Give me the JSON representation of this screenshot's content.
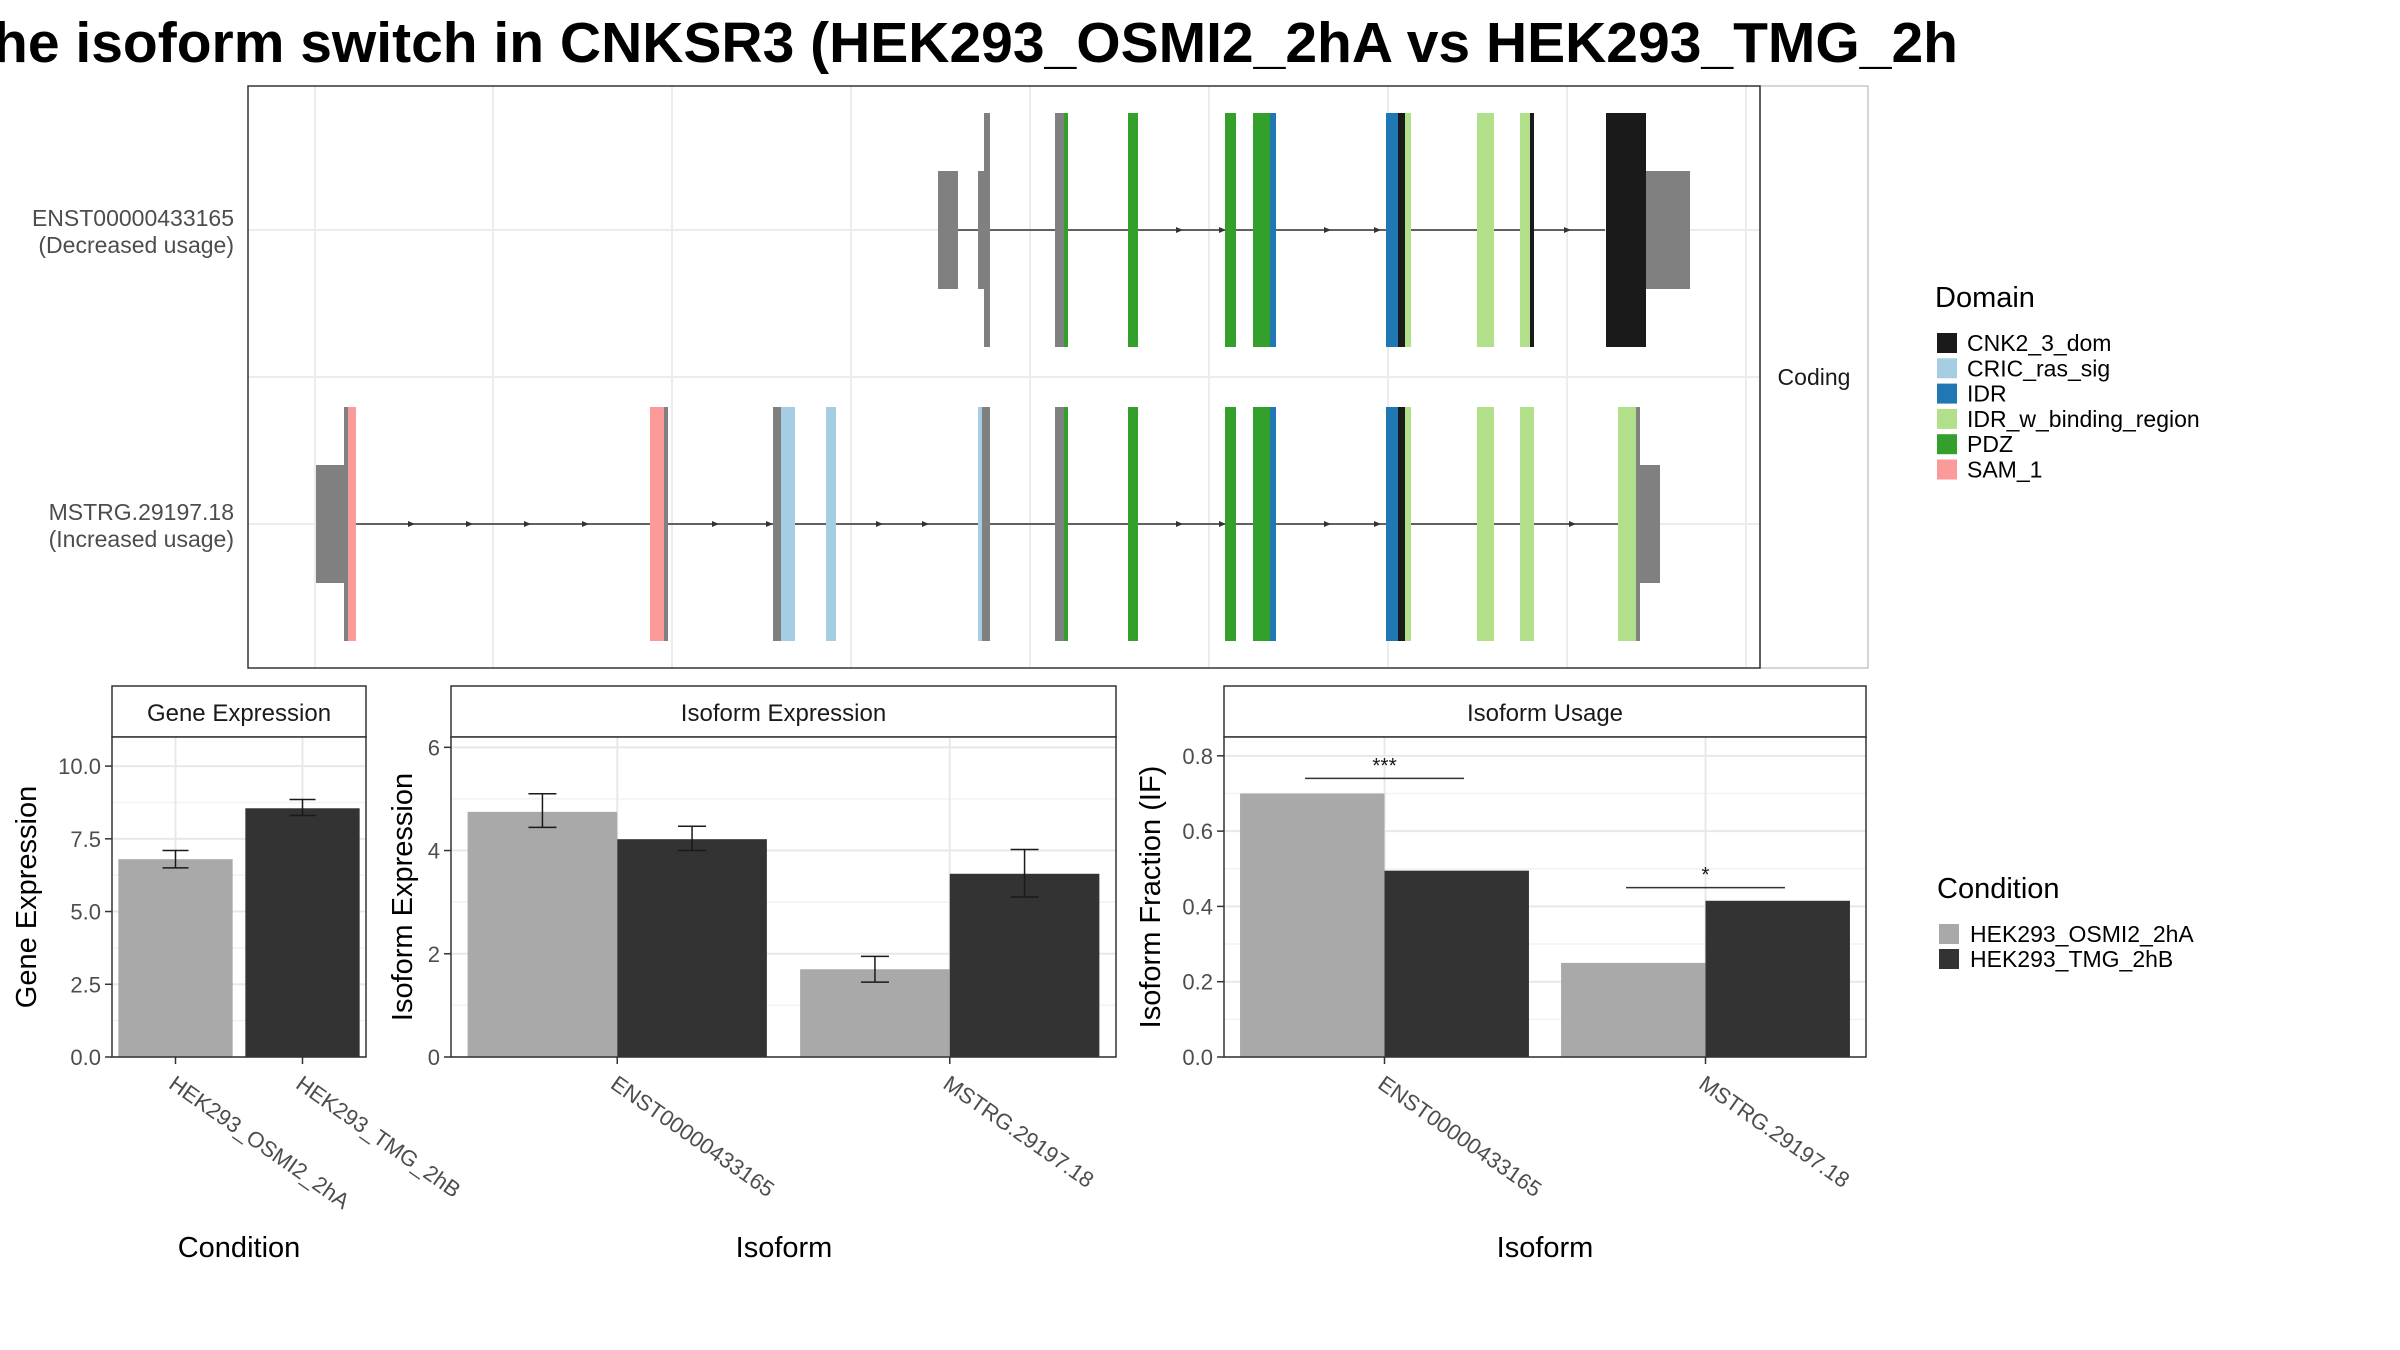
{
  "title": "he isoform switch in CNKSR3 (HEK293_OSMI2_2hA vs HEK293_TMG_2h",
  "colors": {
    "exon": "#808080",
    "CNK2_3_dom": "#1a1a1a",
    "CRIC_ras_sig": "#a6cee3",
    "IDR": "#1f78b4",
    "IDR_w_binding_region": "#b2df8a",
    "PDZ": "#33a02c",
    "SAM_1": "#fb9a99",
    "HEK293_OSMI2_2hA": "#a9a9a9",
    "HEK293_TMG_2hB": "#333333"
  },
  "domain_legend": {
    "title": "Domain",
    "items": [
      "CNK2_3_dom",
      "CRIC_ras_sig",
      "IDR",
      "IDR_w_binding_region",
      "PDZ",
      "SAM_1"
    ]
  },
  "condition_legend": {
    "title": "Condition",
    "items": [
      "HEK293_OSMI2_2hA",
      "HEK293_TMG_2hB"
    ]
  },
  "chart_data": [
    {
      "type": "gene_structure",
      "strip_label": "Coding",
      "transcripts": [
        {
          "name": "ENST00000433165",
          "usage": "(Decreased usage)"
        },
        {
          "name": "MSTRG.29197.18",
          "usage": "(Increased usage)"
        }
      ]
    },
    {
      "type": "bar",
      "panel_title": "Gene Expression",
      "xlabel": "Condition",
      "ylabel": "Gene Expression",
      "ylim": [
        0,
        11
      ],
      "yticks": [
        "0.0",
        "2.5",
        "5.0",
        "7.5",
        "10.0"
      ],
      "ytick_values": [
        0,
        2.5,
        5,
        7.5,
        10
      ],
      "categories": [
        "HEK293_OSMI2_2hA",
        "HEK293_TMG_2hB"
      ],
      "values": [
        6.8,
        8.55
      ],
      "errors": [
        [
          6.5,
          7.1
        ],
        [
          8.3,
          8.85
        ]
      ]
    },
    {
      "type": "bar",
      "panel_title": "Isoform Expression",
      "xlabel": "Isoform",
      "ylabel": "Isoform Expression",
      "ylim": [
        0,
        6.2
      ],
      "yticks": [
        "0",
        "2",
        "4",
        "6"
      ],
      "ytick_values": [
        0,
        2,
        4,
        6
      ],
      "categories": [
        "ENST00000433165",
        "MSTRG.29197.18"
      ],
      "series": [
        {
          "name": "HEK293_OSMI2_2hA",
          "values": [
            4.75,
            1.7
          ],
          "errors": [
            [
              4.45,
              5.1
            ],
            [
              1.45,
              1.95
            ]
          ]
        },
        {
          "name": "HEK293_TMG_2hB",
          "values": [
            4.22,
            3.55
          ],
          "errors": [
            [
              4.0,
              4.47
            ],
            [
              3.1,
              4.02
            ]
          ]
        }
      ]
    },
    {
      "type": "bar",
      "panel_title": "Isoform Usage",
      "xlabel": "Isoform",
      "ylabel": "Isoform Fraction (IF)",
      "ylim": [
        0,
        0.85
      ],
      "yticks": [
        "0.0",
        "0.2",
        "0.4",
        "0.6",
        "0.8"
      ],
      "ytick_values": [
        0,
        0.2,
        0.4,
        0.6,
        0.8
      ],
      "categories": [
        "ENST00000433165",
        "MSTRG.29197.18"
      ],
      "series": [
        {
          "name": "HEK293_OSMI2_2hA",
          "values": [
            0.7,
            0.25
          ]
        },
        {
          "name": "HEK293_TMG_2hB",
          "values": [
            0.495,
            0.415
          ]
        }
      ],
      "significance": [
        {
          "category": "ENST00000433165",
          "label": "***",
          "y": 0.74
        },
        {
          "category": "MSTRG.29197.18",
          "label": "*",
          "y": 0.45
        }
      ]
    }
  ]
}
